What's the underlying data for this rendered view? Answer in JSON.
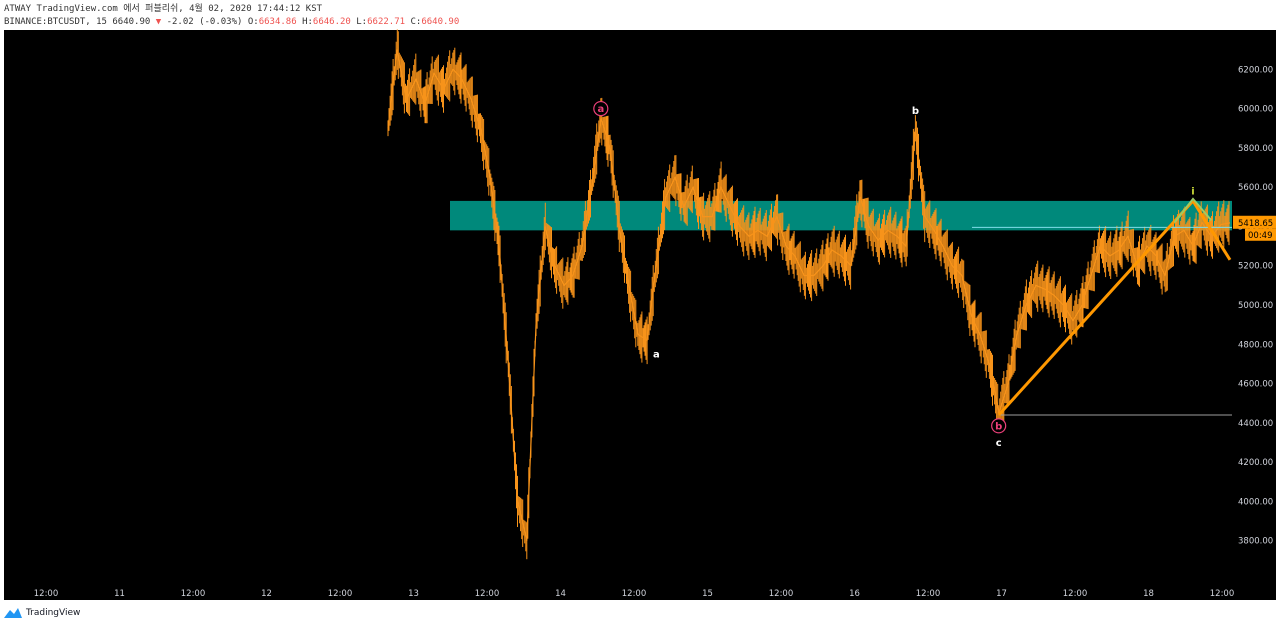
{
  "header": {
    "line1": "ATWAY TradingView.com 에서 퍼블리쉬, 4월 02, 2020 17:44:12 KST",
    "symbol": "BINANCE:BTCUSDT, 15",
    "last": "6640.90",
    "change_arrow": "▼",
    "change": "-2.02 (-0.03%)",
    "o_label": "O:",
    "o": "6634.86",
    "h_label": "H:",
    "h": "6646.20",
    "l_label": "L:",
    "l": "6622.71",
    "c_label": "C:",
    "c": "6640.90"
  },
  "chart_data": {
    "type": "line",
    "title": "",
    "xlabel": "",
    "ylabel": "",
    "ylim": [
      3600,
      6400
    ],
    "y_ticks": [
      "6200.00",
      "6000.00",
      "5800.00",
      "5600.00",
      "5400.00",
      "5200.00",
      "5000.00",
      "4800.00",
      "4600.00",
      "4400.00",
      "4200.00",
      "4000.00",
      "3800.00"
    ],
    "y_tick_values": [
      6200,
      6000,
      5800,
      5600,
      5400,
      5200,
      5000,
      4800,
      4600,
      4400,
      4200,
      4000,
      3800
    ],
    "x_ticks": [
      "12:00",
      "11",
      "12:00",
      "12",
      "12:00",
      "13",
      "12:00",
      "14",
      "12:00",
      "15",
      "12:00",
      "16",
      "12:00",
      "17",
      "12:00",
      "18",
      "12:00"
    ],
    "grid": false,
    "legend": "none",
    "series": [
      {
        "values": [
          5900,
          6300,
          6050,
          6150,
          6020,
          6180,
          6100,
          6200,
          6150,
          6050,
          5900,
          5650,
          5300,
          4700,
          4000,
          3800,
          4900,
          5400,
          5200,
          5100,
          5150,
          5300,
          5600,
          5950,
          5800,
          5400,
          5100,
          4850,
          4820,
          5200,
          5550,
          5650,
          5500,
          5600,
          5450,
          5450,
          5600,
          5500,
          5400,
          5350,
          5380,
          5350,
          5450,
          5300,
          5250,
          5150,
          5150,
          5200,
          5280,
          5250,
          5200,
          5550,
          5400,
          5330,
          5380,
          5350,
          5300,
          5900,
          5450,
          5380,
          5300,
          5200,
          5150,
          4950,
          4850,
          4700,
          4450,
          4600,
          4850,
          5000,
          5100,
          5080,
          5050,
          5000,
          4920,
          5000,
          5150,
          5300,
          5250,
          5280,
          5350,
          5200,
          5300,
          5250,
          5150,
          5350,
          5380,
          5300,
          5420,
          5350,
          5410,
          5418
        ]
      }
    ],
    "zone": {
      "y_top": 5530,
      "y_bottom": 5380
    },
    "price_label": "5418.65",
    "countdown": "00:49",
    "annotations": [
      {
        "text": "a",
        "circled": true,
        "x_index": 23,
        "y": 6000,
        "color": "#ec407a"
      },
      {
        "text": "a",
        "circled": false,
        "x_index": 29,
        "y": 4750,
        "color": "#ffffff"
      },
      {
        "text": "b",
        "circled": false,
        "x_index": 57,
        "y": 5990,
        "color": "#ffffff"
      },
      {
        "text": "b",
        "circled": true,
        "x_index": 66,
        "y": 4385,
        "color": "#ec407a"
      },
      {
        "text": "c",
        "circled": false,
        "x_index": 66,
        "y": 4300,
        "color": "#ffffff"
      },
      {
        "text": "i",
        "circled": false,
        "x_index": 87,
        "y": 5580,
        "color": "#cddc39"
      }
    ],
    "drawings": {
      "orange_up": [
        [
          66,
          4440
        ],
        [
          87,
          5530
        ]
      ],
      "orange_down": [
        [
          87,
          5530
        ],
        [
          91,
          5230
        ]
      ],
      "green": [
        [
          85,
          5420
        ],
        [
          87,
          5540
        ],
        [
          89,
          5430
        ]
      ],
      "low_line_y": 4440,
      "cyan_line_y": 5395
    },
    "colors": {
      "candle": "#f7931a",
      "zone": "#00897b",
      "orange": "#ff9800",
      "green": "#9ccc65",
      "axis_text": "#d1d4dc",
      "background": "#000000"
    }
  },
  "footer": {
    "brand": "TradingView"
  }
}
